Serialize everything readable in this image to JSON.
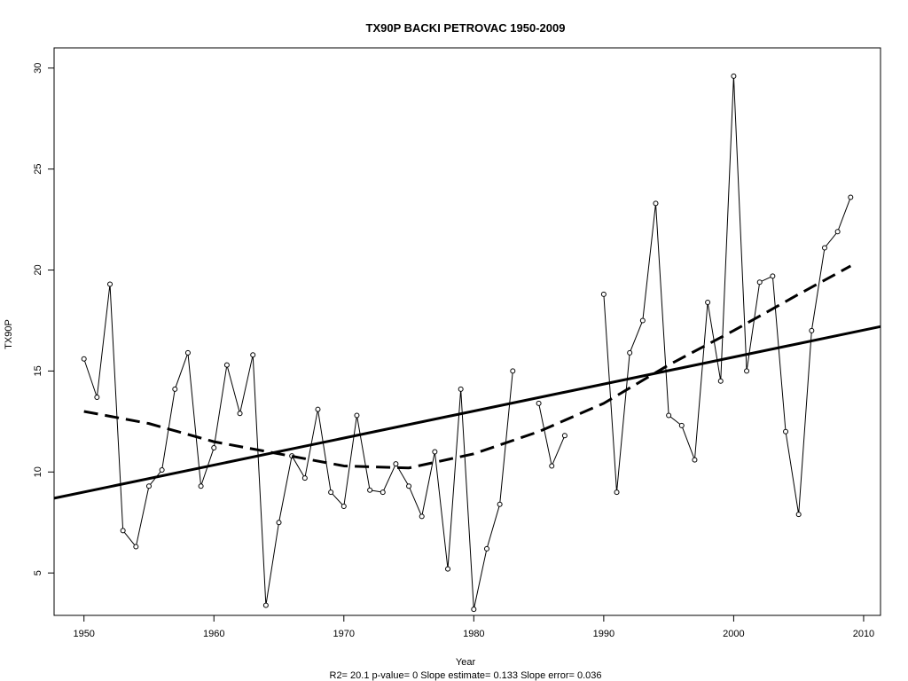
{
  "chart_data": {
    "type": "line",
    "title": "TX90P   BACKI PETROVAC 1950-2009",
    "xlabel": "Year",
    "ylabel": "TX90P",
    "footer": "R2= 20.1  p-value= 0  Slope estimate= 0.133  Slope error= 0.036",
    "xlim": [
      1947.7,
      2011.3
    ],
    "ylim": [
      2.9,
      31.0
    ],
    "x_ticks": [
      1950,
      1960,
      1970,
      1980,
      1990,
      2000,
      2010
    ],
    "y_ticks": [
      5,
      10,
      15,
      20,
      25,
      30
    ],
    "series": [
      {
        "style": "line-with-circles",
        "x": [
          1950,
          1951,
          1952,
          1953,
          1954,
          1955,
          1956,
          1957,
          1958,
          1959,
          1960,
          1961,
          1962,
          1963,
          1964,
          1965,
          1966,
          1967,
          1968,
          1969,
          1970,
          1971,
          1972,
          1973,
          1974,
          1975,
          1976,
          1977,
          1978,
          1979,
          1980,
          1981,
          1982,
          1983,
          1984,
          1985,
          1986,
          1987,
          1988,
          1989,
          1990,
          1991,
          1992,
          1993,
          1994,
          1995,
          1996,
          1997,
          1998,
          1999,
          2000,
          2001,
          2002,
          2003,
          2004,
          2005,
          2006,
          2007,
          2008,
          2009
        ],
        "y": [
          15.6,
          13.7,
          19.3,
          7.1,
          6.3,
          9.3,
          10.1,
          14.1,
          15.9,
          9.3,
          11.2,
          15.3,
          12.9,
          15.8,
          3.4,
          7.5,
          10.8,
          9.7,
          13.1,
          9.0,
          8.3,
          12.8,
          9.1,
          9.0,
          10.4,
          9.3,
          7.8,
          11.0,
          5.2,
          14.1,
          3.2,
          6.2,
          8.4,
          15.0,
          null,
          13.4,
          10.3,
          11.8,
          null,
          null,
          18.8,
          9.0,
          15.9,
          17.5,
          23.3,
          12.8,
          12.3,
          10.6,
          18.4,
          14.5,
          29.6,
          15.0,
          19.4,
          19.7,
          12.0,
          7.9,
          17.0,
          21.1,
          21.9,
          23.6
        ]
      },
      {
        "style": "solid-thick",
        "x": [
          1947.7,
          2011.3
        ],
        "y": [
          8.7,
          17.2
        ]
      },
      {
        "style": "dashed-thick",
        "x": [
          1950,
          1955,
          1960,
          1965,
          1970,
          1975,
          1980,
          1985,
          1990,
          1995,
          2000,
          2005,
          2009
        ],
        "y": [
          13.0,
          12.4,
          11.5,
          10.9,
          10.3,
          10.2,
          10.9,
          12.0,
          13.4,
          15.3,
          17.0,
          18.8,
          20.2
        ]
      }
    ],
    "grid": false
  }
}
